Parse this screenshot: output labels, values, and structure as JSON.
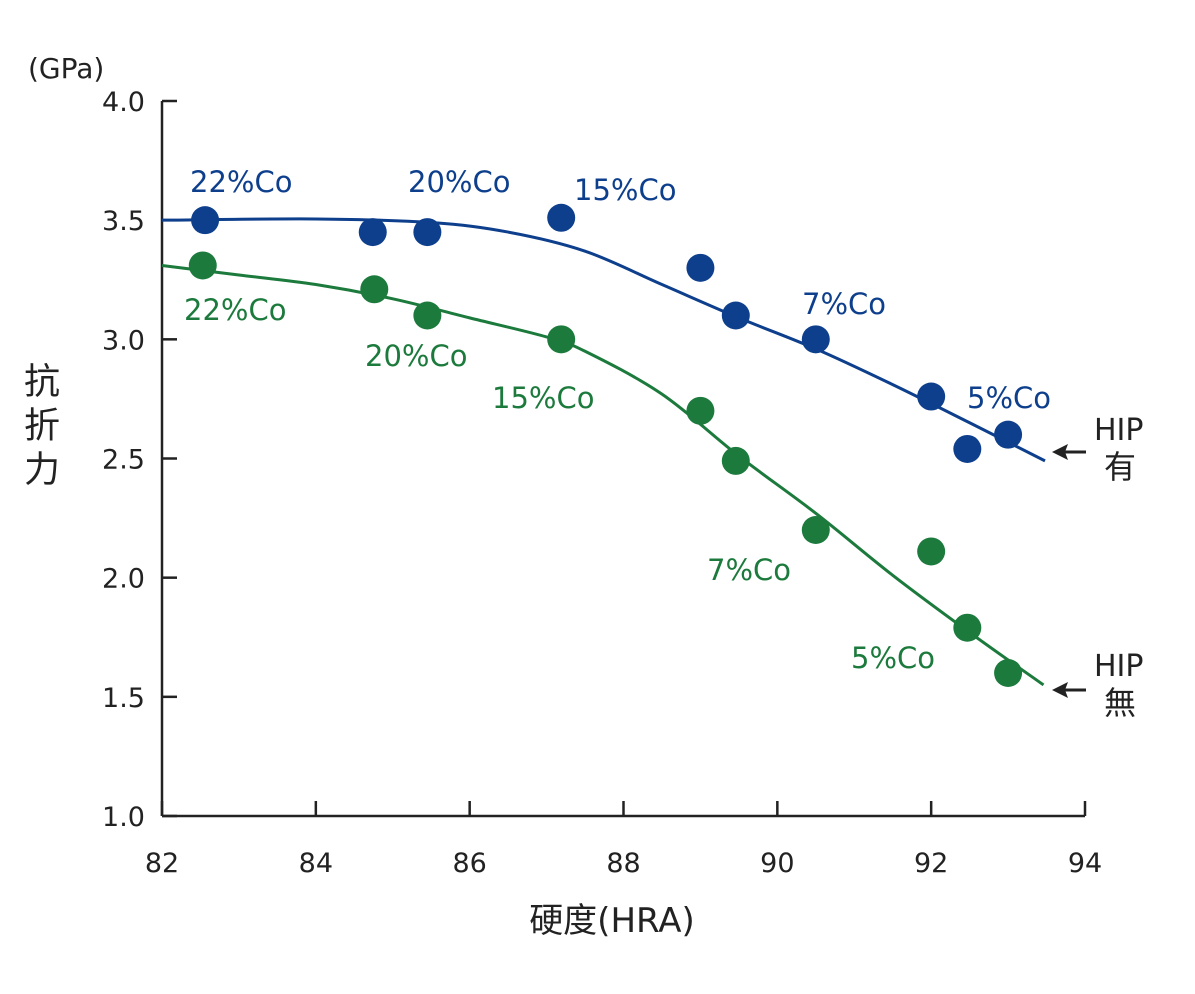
{
  "chart_data": {
    "type": "scatter",
    "title": "",
    "xlabel": "硬度(HRA)",
    "ylabel": "抗折力",
    "yunit": "(GPa)",
    "xlim": [
      82,
      94
    ],
    "ylim": [
      1.0,
      4.0
    ],
    "xticks": [
      "82",
      "84",
      "86",
      "88",
      "90",
      "92",
      "94"
    ],
    "yticks": [
      "1.0",
      "1.5",
      "2.0",
      "2.5",
      "3.0",
      "3.5",
      "4.0"
    ],
    "grid": false,
    "series": [
      {
        "name": "HIP 有",
        "label_line1": "HIP",
        "label_line2": "有",
        "color": "#0e3f8c",
        "points": [
          [
            82.56,
            3.5
          ],
          [
            84.74,
            3.45
          ],
          [
            85.45,
            3.45
          ],
          [
            87.19,
            3.51
          ],
          [
            89.0,
            3.3
          ],
          [
            89.46,
            3.1
          ],
          [
            90.5,
            3.0
          ],
          [
            92.0,
            2.76
          ],
          [
            92.47,
            2.54
          ],
          [
            93.0,
            2.6
          ]
        ],
        "curve": [
          [
            82,
            3.5
          ],
          [
            84,
            3.505
          ],
          [
            85.5,
            3.49
          ],
          [
            86.5,
            3.45
          ],
          [
            87.5,
            3.37
          ],
          [
            88.5,
            3.23
          ],
          [
            89.5,
            3.09
          ],
          [
            90.5,
            2.96
          ],
          [
            91.5,
            2.81
          ],
          [
            92.5,
            2.65
          ],
          [
            93.48,
            2.49
          ]
        ],
        "annotations": [
          "22%Co",
          "20%Co",
          "15%Co",
          "7%Co",
          "5%Co"
        ]
      },
      {
        "name": "HIP 無",
        "label_line1": "HIP",
        "label_line2": "無",
        "color": "#1c7a3c",
        "points": [
          [
            82.53,
            3.31
          ],
          [
            84.76,
            3.21
          ],
          [
            85.45,
            3.1
          ],
          [
            87.19,
            3.0
          ],
          [
            89.0,
            2.7
          ],
          [
            89.46,
            2.49
          ],
          [
            90.5,
            2.2
          ],
          [
            92.0,
            2.11
          ],
          [
            92.47,
            1.79
          ],
          [
            93.0,
            1.6
          ]
        ],
        "curve": [
          [
            82,
            3.31
          ],
          [
            83,
            3.27
          ],
          [
            84,
            3.23
          ],
          [
            85,
            3.17
          ],
          [
            86,
            3.09
          ],
          [
            87,
            3.01
          ],
          [
            87.5,
            2.95
          ],
          [
            88.5,
            2.77
          ],
          [
            89.5,
            2.51
          ],
          [
            90.5,
            2.27
          ],
          [
            91.5,
            2.01
          ],
          [
            92.5,
            1.77
          ],
          [
            93.46,
            1.55
          ]
        ],
        "annotations": [
          "22%Co",
          "20%Co",
          "15%Co",
          "7%Co",
          "5%Co"
        ]
      }
    ]
  }
}
